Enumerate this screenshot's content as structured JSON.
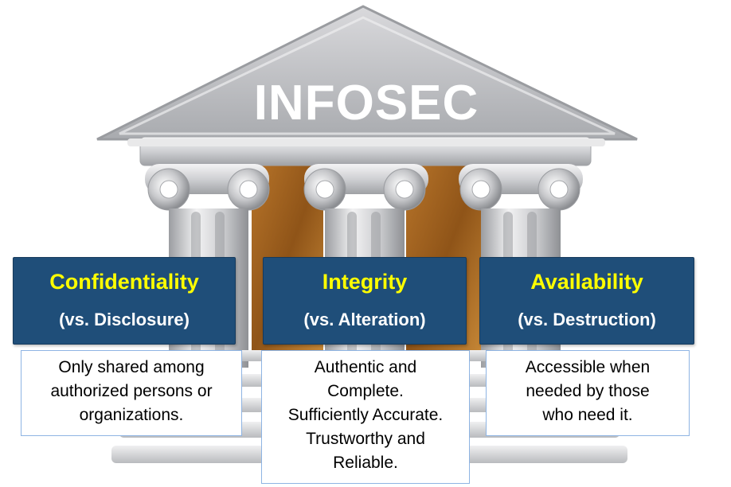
{
  "temple": {
    "title": "INFOSEC"
  },
  "pillars": [
    {
      "title": "Confidentiality",
      "subtitle": "(vs. Disclosure)",
      "description": [
        "Only shared among",
        "authorized persons or",
        "organizations."
      ]
    },
    {
      "title": "Integrity",
      "subtitle": "(vs. Alteration)",
      "description": [
        "Authentic and",
        "Complete.",
        "Sufficiently Accurate.",
        "Trustworthy and",
        "Reliable."
      ]
    },
    {
      "title": "Availability",
      "subtitle": "(vs. Destruction)",
      "description": [
        "Accessible when",
        "needed by those",
        "who need it."
      ]
    }
  ],
  "colors": {
    "box_fill": "#1f4e79",
    "box_title": "#ffff00",
    "box_subtitle": "#ffffff",
    "description_border": "#8eb4e3",
    "temple_stone": "#c8c9cc",
    "temple_wood": "#a0631c"
  }
}
